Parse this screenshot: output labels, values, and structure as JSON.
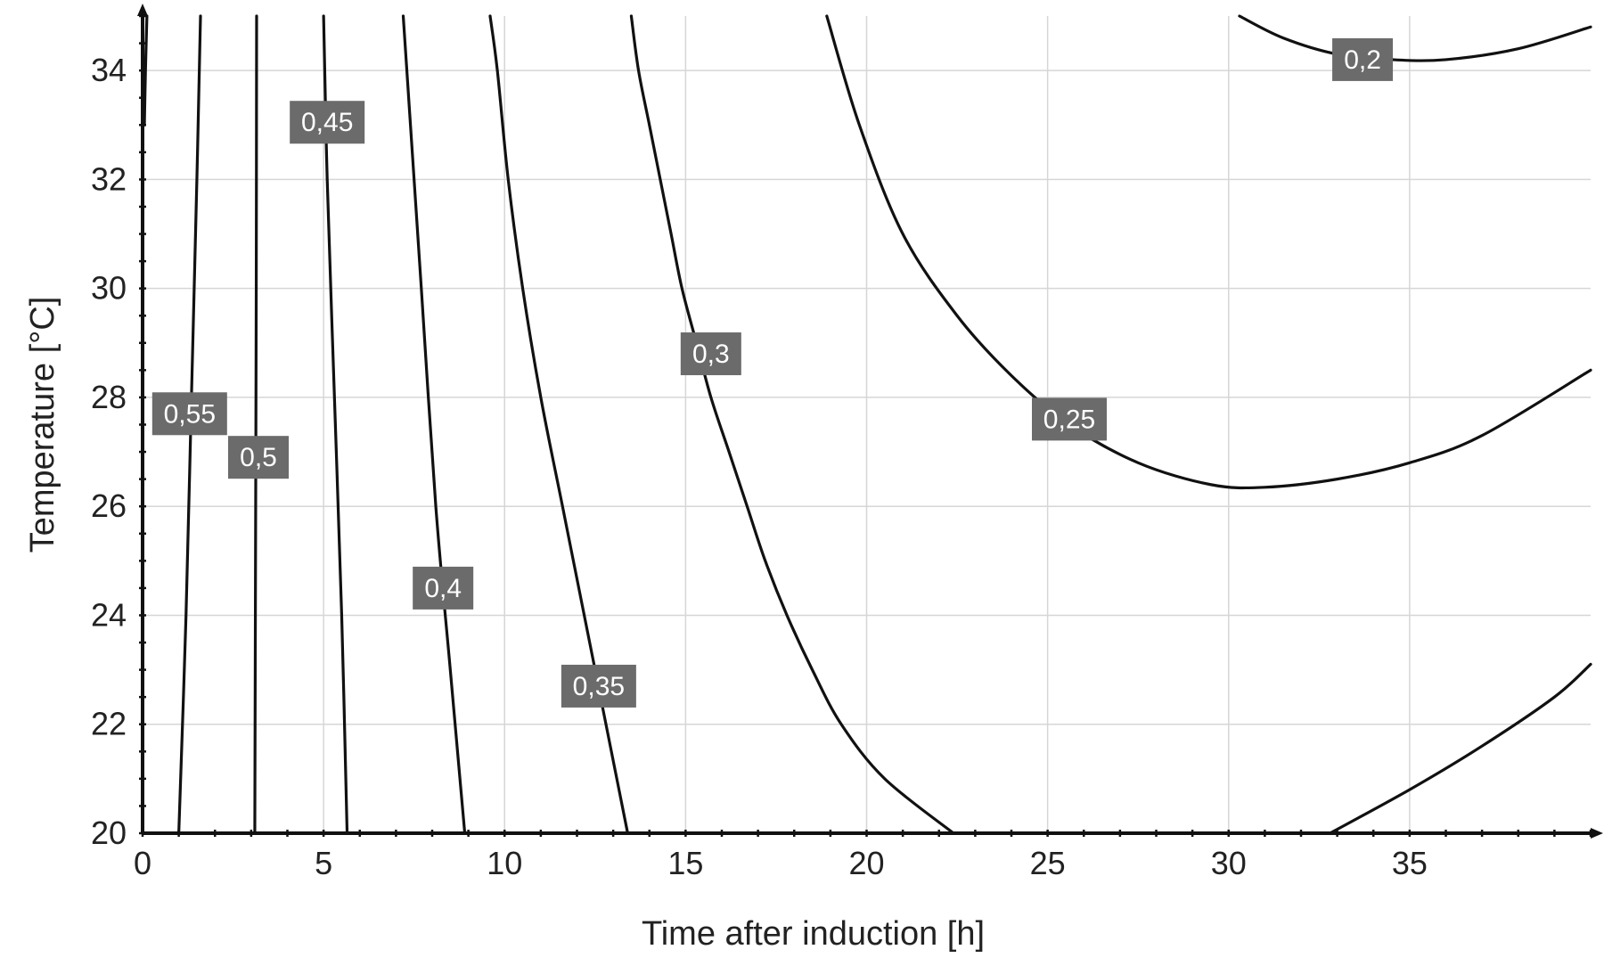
{
  "chart_data": {
    "type": "contour",
    "xlabel": "Time after induction [h]",
    "ylabel": "Temperature [°C]",
    "xlim": [
      0,
      40
    ],
    "ylim": [
      20,
      35
    ],
    "xticks": [
      0,
      5,
      10,
      15,
      20,
      25,
      30,
      35
    ],
    "yticks": [
      20,
      22,
      24,
      26,
      28,
      30,
      32,
      34
    ],
    "grid": true,
    "contours": [
      {
        "level": "0,55",
        "label_at": [
          1.3,
          27.7
        ],
        "points": [
          [
            1.0,
            20.0
          ],
          [
            1.2,
            24.0
          ],
          [
            1.35,
            28.0
          ],
          [
            1.5,
            32.0
          ],
          [
            1.6,
            35.0
          ]
        ]
      },
      {
        "level": "0,5",
        "label_at": [
          3.2,
          26.9
        ],
        "points": [
          [
            3.1,
            20.0
          ],
          [
            3.12,
            25.0
          ],
          [
            3.14,
            30.0
          ],
          [
            3.15,
            35.0
          ]
        ]
      },
      {
        "level": "0,45",
        "label_at": [
          5.1,
          33.05
        ],
        "points": [
          [
            5.65,
            20.0
          ],
          [
            5.5,
            24.0
          ],
          [
            5.3,
            28.0
          ],
          [
            5.1,
            32.0
          ],
          [
            5.0,
            35.0
          ]
        ]
      },
      {
        "level": "0,4",
        "label_at": [
          8.3,
          24.5
        ],
        "points": [
          [
            8.9,
            20.0
          ],
          [
            8.5,
            23.0
          ],
          [
            8.1,
            26.0
          ],
          [
            7.7,
            30.0
          ],
          [
            7.4,
            33.0
          ],
          [
            7.2,
            35.0
          ]
        ]
      },
      {
        "level": "0,35",
        "label_at": [
          12.6,
          22.7
        ],
        "points": [
          [
            13.4,
            20.0
          ],
          [
            12.8,
            22.0
          ],
          [
            12.2,
            24.0
          ],
          [
            11.6,
            26.0
          ],
          [
            11.0,
            28.0
          ],
          [
            10.5,
            30.0
          ],
          [
            10.1,
            32.0
          ],
          [
            9.8,
            34.0
          ],
          [
            9.6,
            35.0
          ]
        ]
      },
      {
        "level": "0,3",
        "label_at": [
          15.7,
          28.8
        ],
        "points": [
          [
            22.4,
            20.0
          ],
          [
            20.5,
            21.0
          ],
          [
            19.3,
            22.0
          ],
          [
            18.5,
            23.0
          ],
          [
            17.8,
            24.0
          ],
          [
            17.2,
            25.0
          ],
          [
            16.7,
            26.0
          ],
          [
            16.2,
            27.0
          ],
          [
            15.7,
            28.0
          ],
          [
            15.3,
            29.0
          ],
          [
            14.9,
            30.0
          ],
          [
            14.6,
            31.0
          ],
          [
            14.3,
            32.0
          ],
          [
            14.0,
            33.0
          ],
          [
            13.7,
            34.0
          ],
          [
            13.5,
            35.0
          ]
        ]
      },
      {
        "level": "0,25",
        "label_at": [
          25.6,
          27.6
        ],
        "points": [
          [
            18.9,
            35.0
          ],
          [
            19.8,
            33.0
          ],
          [
            21.0,
            31.0
          ],
          [
            22.5,
            29.5
          ],
          [
            24.0,
            28.4
          ],
          [
            25.6,
            27.5
          ],
          [
            27.5,
            26.8
          ],
          [
            29.5,
            26.4
          ],
          [
            31.0,
            26.35
          ],
          [
            33.0,
            26.5
          ],
          [
            35.0,
            26.8
          ],
          [
            37.0,
            27.3
          ],
          [
            40.0,
            28.5
          ]
        ]
      },
      {
        "level": "0,2",
        "label_at": [
          33.7,
          34.2
        ],
        "points": [
          [
            30.3,
            35.0
          ],
          [
            31.5,
            34.6
          ],
          [
            33.0,
            34.3
          ],
          [
            34.5,
            34.2
          ],
          [
            36.0,
            34.2
          ],
          [
            38.0,
            34.4
          ],
          [
            40.0,
            34.8
          ]
        ]
      },
      {
        "level": "",
        "points": [
          [
            32.8,
            20.0
          ],
          [
            35.0,
            20.8
          ],
          [
            37.0,
            21.6
          ],
          [
            39.0,
            22.5
          ],
          [
            40.0,
            23.1
          ]
        ]
      },
      {
        "level": "",
        "points": [
          [
            0.05,
            33.0
          ],
          [
            0.08,
            34.0
          ],
          [
            0.12,
            35.0
          ]
        ]
      }
    ]
  }
}
